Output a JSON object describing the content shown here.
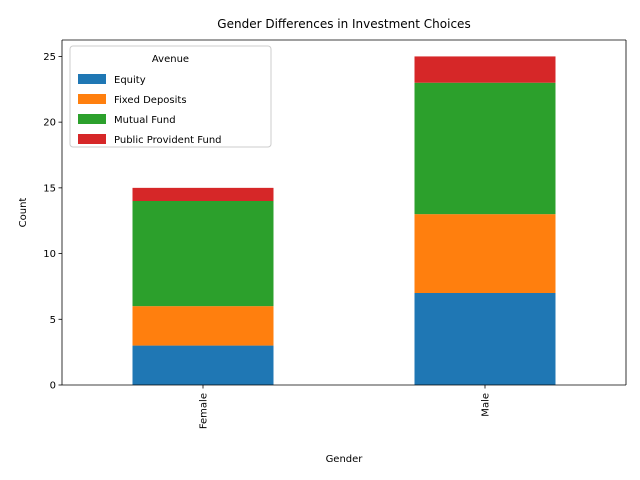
{
  "chart_data": {
    "type": "bar",
    "stacked": true,
    "title": "Gender Differences in Investment Choices",
    "xlabel": "Gender",
    "ylabel": "Count",
    "categories": [
      "Female",
      "Male"
    ],
    "series": [
      {
        "name": "Equity",
        "values": [
          3,
          7
        ],
        "color": "#1f77b4"
      },
      {
        "name": "Fixed Deposits",
        "values": [
          3,
          6
        ],
        "color": "#ff7f0e"
      },
      {
        "name": "Mutual Fund",
        "values": [
          8,
          10
        ],
        "color": "#2ca02c"
      },
      {
        "name": "Public Provident Fund",
        "values": [
          1,
          2
        ],
        "color": "#d62728"
      }
    ],
    "ylim": [
      0,
      26.25
    ],
    "yticks": [
      0,
      5,
      10,
      15,
      20,
      25
    ],
    "grid": false,
    "legend": {
      "title": "Avenue",
      "placement": "top-left"
    }
  }
}
